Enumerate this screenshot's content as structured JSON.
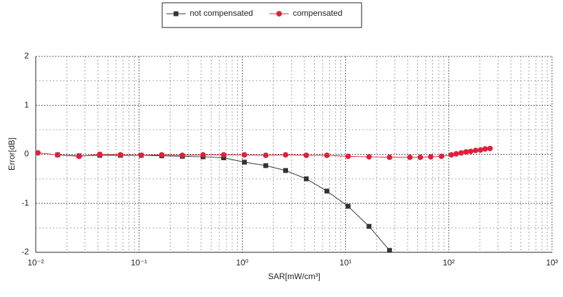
{
  "chart_data": {
    "type": "line",
    "xlabel": "SAR[mW/cm³]",
    "ylabel": "Error[dB]",
    "xscale": "log",
    "xlim": [
      0.01,
      1000
    ],
    "xticks": [
      {
        "value": 0.01,
        "label": "10⁻²"
      },
      {
        "value": 0.1,
        "label": "10⁻¹"
      },
      {
        "value": 1,
        "label": "10⁰"
      },
      {
        "value": 10,
        "label": "10¹"
      },
      {
        "value": 100,
        "label": "10²"
      },
      {
        "value": 1000,
        "label": "10³"
      }
    ],
    "ylim": [
      -2,
      2
    ],
    "yticks": [
      -2,
      -1,
      0,
      1,
      2
    ],
    "grid": true,
    "legend": "top",
    "series": [
      {
        "name": "not compensated",
        "color": "#333333",
        "marker": "square",
        "x": [
          0.0163,
          0.0263,
          0.0417,
          0.066,
          0.105,
          0.166,
          0.263,
          0.417,
          0.66,
          1.05,
          1.69,
          2.63,
          4.17,
          6.6,
          10.6,
          16.9,
          26.7
        ],
        "values": [
          -0.01,
          -0.03,
          -0.02,
          -0.02,
          -0.02,
          -0.03,
          -0.04,
          -0.05,
          -0.07,
          -0.16,
          -0.23,
          -0.33,
          -0.5,
          -0.75,
          -1.06,
          -1.47,
          -1.96
        ]
      },
      {
        "name": "compensated",
        "color": "#e0203a",
        "marker": "circle",
        "x": [
          0.0105,
          0.0163,
          0.0263,
          0.0417,
          0.066,
          0.105,
          0.166,
          0.263,
          0.417,
          0.66,
          1.05,
          1.69,
          2.63,
          4.17,
          6.6,
          10.6,
          16.9,
          26.7,
          42,
          53,
          67,
          85,
          106,
          118,
          132,
          147,
          163,
          182,
          203,
          225,
          251
        ],
        "values": [
          0.03,
          -0.01,
          -0.04,
          0.0,
          -0.01,
          -0.02,
          -0.01,
          -0.02,
          -0.01,
          -0.01,
          -0.01,
          -0.02,
          -0.01,
          -0.02,
          -0.02,
          -0.04,
          -0.05,
          -0.06,
          -0.06,
          -0.06,
          -0.05,
          -0.04,
          -0.01,
          0.01,
          0.03,
          0.05,
          0.06,
          0.08,
          0.09,
          0.11,
          0.12
        ]
      }
    ]
  }
}
